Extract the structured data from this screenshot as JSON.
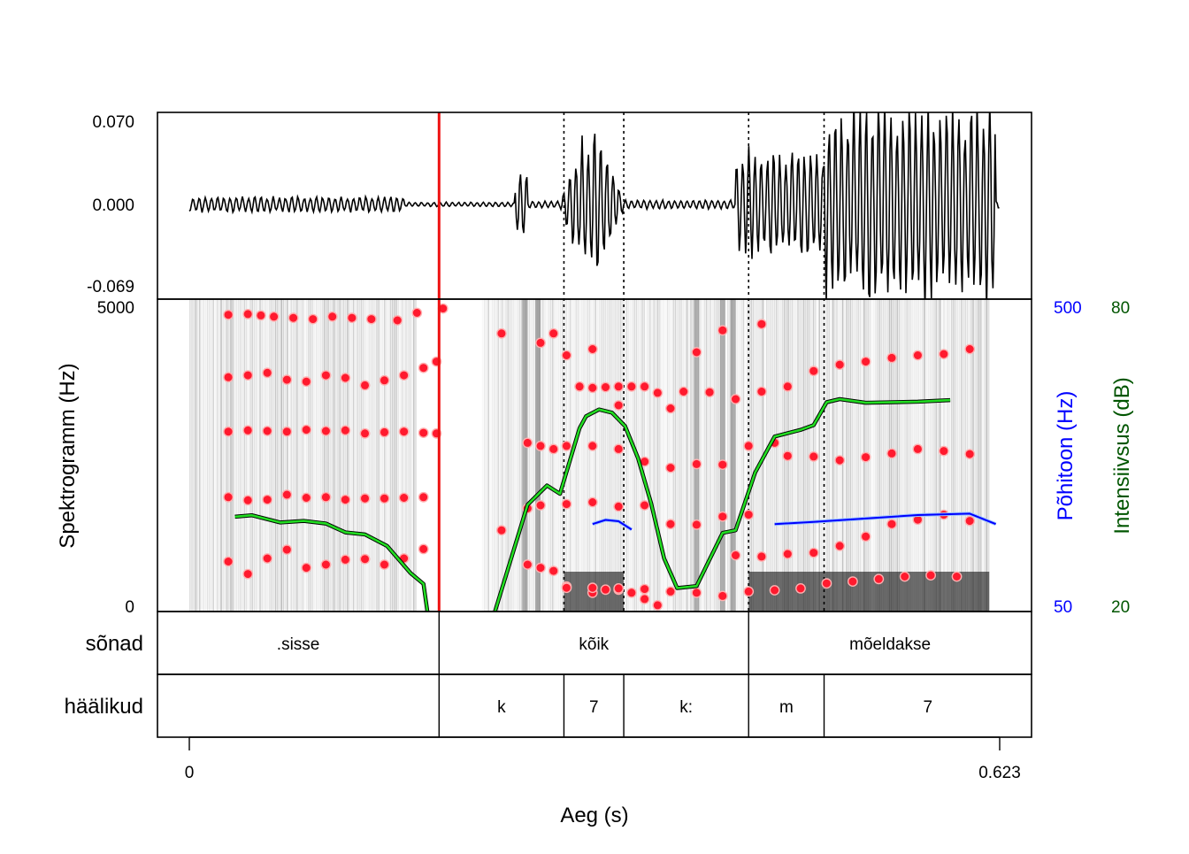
{
  "chart_data": {
    "type": "line",
    "title": "",
    "xlabel": "Aeg (s)",
    "xlim": [
      0,
      0.623
    ],
    "x_ticks": [
      "0",
      "0.623"
    ],
    "waveform": {
      "tick_labels": [
        "0.070",
        "0.000",
        "-0.069"
      ],
      "ylim": [
        -0.069,
        0.07
      ]
    },
    "spectrogram": {
      "ylabel": "Spektrogramm (Hz)",
      "tick_labels": [
        "5000",
        "0"
      ],
      "ylim": [
        0,
        5000
      ]
    },
    "pitch": {
      "label": "Põhitoon (Hz)",
      "tick_labels": [
        "500",
        "50"
      ],
      "ylim": [
        50,
        500
      ],
      "color": "#0000ff",
      "segments": [
        {
          "t": [
            0.31,
            0.32,
            0.33,
            0.34
          ],
          "v": [
            176,
            182,
            180,
            168
          ]
        },
        {
          "t": [
            0.45,
            0.48,
            0.52,
            0.56,
            0.6,
            0.62
          ],
          "v": [
            176,
            179,
            184,
            189,
            191,
            176
          ]
        }
      ]
    },
    "intensity": {
      "label": "Intensiivsus (dB)",
      "tick_labels": [
        "80",
        "20"
      ],
      "ylim": [
        20,
        80
      ],
      "color": "#00aa00",
      "segments": [
        {
          "t": [
            0.035,
            0.048,
            0.07,
            0.088,
            0.105,
            0.12,
            0.135,
            0.152,
            0.17,
            0.18,
            0.183
          ],
          "v": [
            38.2,
            38.5,
            37.1,
            37.4,
            36.9,
            35.2,
            34.8,
            32.6,
            27.4,
            25.3,
            20
          ]
        },
        {
          "t": [
            0.235,
            0.26,
            0.275,
            0.285,
            0.3,
            0.305,
            0.315,
            0.325,
            0.335,
            0.345,
            0.355,
            0.365,
            0.375,
            0.39,
            0.41,
            0.42,
            0.435,
            0.45,
            0.47,
            0.48,
            0.49,
            0.5,
            0.52,
            0.56,
            0.585
          ],
          "v": [
            20,
            40.5,
            44.2,
            42.6,
            55.2,
            57.5,
            58.8,
            58.2,
            55.6,
            49.4,
            40.8,
            30.2,
            24.5,
            24.9,
            35.1,
            35.6,
            46.7,
            53.6,
            54.9,
            55.8,
            60.2,
            60.8,
            60.1,
            60.3,
            60.6
          ]
        }
      ]
    },
    "formant_tracks": [
      {
        "t": [
          0.03,
          0.045,
          0.055,
          0.065,
          0.08,
          0.095,
          0.11,
          0.125,
          0.14,
          0.16,
          0.175,
          0.195
        ],
        "v": [
          4750,
          4760,
          4740,
          4720,
          4700,
          4680,
          4720,
          4700,
          4680,
          4660,
          4780,
          4850
        ]
      },
      {
        "t": [
          0.03,
          0.045,
          0.06,
          0.075,
          0.09,
          0.105,
          0.12,
          0.135,
          0.15,
          0.165,
          0.18,
          0.19
        ],
        "v": [
          3750,
          3780,
          3820,
          3710,
          3680,
          3780,
          3740,
          3620,
          3700,
          3780,
          3900,
          4000
        ]
      },
      {
        "t": [
          0.03,
          0.045,
          0.06,
          0.075,
          0.09,
          0.105,
          0.12,
          0.135,
          0.15,
          0.165,
          0.18,
          0.19
        ],
        "v": [
          2880,
          2900,
          2890,
          2880,
          2910,
          2890,
          2900,
          2850,
          2870,
          2880,
          2860,
          2850
        ]
      },
      {
        "t": [
          0.03,
          0.045,
          0.06,
          0.075,
          0.09,
          0.105,
          0.12,
          0.135,
          0.15,
          0.165,
          0.18
        ],
        "v": [
          1830,
          1780,
          1790,
          1870,
          1820,
          1830,
          1790,
          1810,
          1810,
          1820,
          1830
        ]
      },
      {
        "t": [
          0.03,
          0.045,
          0.06,
          0.075,
          0.09,
          0.105,
          0.12,
          0.135,
          0.15,
          0.165,
          0.18
        ],
        "v": [
          800,
          600,
          850,
          990,
          700,
          750,
          830,
          840,
          750,
          850,
          1000
        ]
      },
      {
        "t": [
          0.24,
          0.27,
          0.28,
          0.29,
          0.3,
          0.31,
          0.33,
          0.35,
          0.37,
          0.39,
          0.41,
          0.44
        ],
        "v": [
          4450,
          4300,
          4450,
          4100,
          3600,
          4200,
          3300,
          3600,
          3250,
          4150,
          4500,
          4600
        ]
      },
      {
        "t": [
          0.26,
          0.27,
          0.28,
          0.29,
          0.31,
          0.33,
          0.35,
          0.37,
          0.39,
          0.41,
          0.43,
          0.45
        ],
        "v": [
          2700,
          2650,
          2600,
          2650,
          2650,
          2600,
          2400,
          2300,
          2360,
          2350,
          2650,
          2700
        ]
      },
      {
        "t": [
          0.24,
          0.26,
          0.27,
          0.29,
          0.31,
          0.33,
          0.35,
          0.37,
          0.39,
          0.41,
          0.43
        ],
        "v": [
          1300,
          1650,
          1700,
          1720,
          1750,
          1680,
          1700,
          1400,
          1390,
          1520,
          1550
        ]
      },
      {
        "t": [
          0.26,
          0.27,
          0.28,
          0.29,
          0.31,
          0.32,
          0.33,
          0.34,
          0.35,
          0.36
        ],
        "v": [
          750,
          700,
          650,
          400,
          300,
          350,
          350,
          300,
          200,
          100
        ]
      },
      {
        "t": [
          0.31,
          0.32,
          0.33,
          0.34,
          0.36,
          0.38,
          0.4,
          0.42,
          0.44,
          0.46,
          0.48,
          0.5,
          0.52,
          0.54,
          0.56,
          0.58,
          0.6
        ],
        "v": [
          3580,
          3590,
          3600,
          3600,
          3500,
          3520,
          3510,
          3400,
          3520,
          3600,
          3850,
          3950,
          4000,
          4060,
          4100,
          4120,
          4200
        ]
      },
      {
        "t": [
          0.46,
          0.48,
          0.5,
          0.52,
          0.54,
          0.56,
          0.58,
          0.6
        ],
        "v": [
          2490,
          2480,
          2420,
          2470,
          2530,
          2600,
          2570,
          2520
        ]
      },
      {
        "t": [
          0.42,
          0.44,
          0.46,
          0.48,
          0.5,
          0.52,
          0.54,
          0.56,
          0.58,
          0.6
        ],
        "v": [
          900,
          880,
          920,
          940,
          1050,
          1200,
          1400,
          1470,
          1550,
          1450
        ]
      },
      {
        "t": [
          0.29,
          0.31,
          0.33,
          0.35,
          0.37,
          0.39,
          0.41,
          0.43,
          0.45,
          0.47,
          0.49,
          0.51,
          0.53,
          0.55,
          0.57,
          0.59
        ],
        "v": [
          380,
          380,
          370,
          360,
          320,
          300,
          250,
          320,
          340,
          370,
          450,
          480,
          520,
          560,
          580,
          560
        ]
      }
    ],
    "boundaries_dotted": [
      0.288,
      0.334,
      0.43,
      0.488
    ],
    "cursor": 0.192,
    "tiers": [
      {
        "name": "sõnad",
        "intervals": [
          {
            "label": ".sisse",
            "start": 0,
            "end": 0.192
          },
          {
            "label": "kõik",
            "start": 0.192,
            "end": 0.43
          },
          {
            "label": "mõeldakse",
            "start": 0.43,
            "end": 0.623
          }
        ]
      },
      {
        "name": "häälikud",
        "intervals": [
          {
            "label": "",
            "start": 0,
            "end": 0.192
          },
          {
            "label": "k",
            "start": 0.192,
            "end": 0.288
          },
          {
            "label": "7",
            "start": 0.288,
            "end": 0.334
          },
          {
            "label": "k:",
            "start": 0.334,
            "end": 0.43
          },
          {
            "label": "m",
            "start": 0.43,
            "end": 0.488
          },
          {
            "label": "7",
            "start": 0.488,
            "end": 0.623
          }
        ]
      }
    ],
    "colors": {
      "cursor": "#ee1111",
      "formant": "#ff1a2e",
      "pitch": "#0000ff",
      "intensity": "#00aa00",
      "intensity_axis": "#005500"
    }
  }
}
